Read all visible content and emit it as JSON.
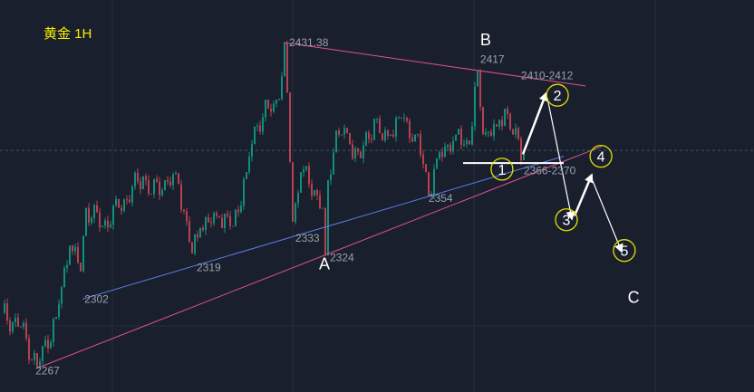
{
  "chart_data": {
    "type": "candlestick",
    "title": "黄金 1H",
    "ylim": [
      2247,
      2448
    ],
    "xlim": [
      0,
      277
    ],
    "colors": {
      "up": "#0f8f7c",
      "down": "#b8414f",
      "background": "#1a1f2e",
      "grid": "#262c3b",
      "trend_pink": "#e0508f",
      "trend_blue": "#5b7fe6",
      "annotation": "#ffffff",
      "circle": "#e4e000",
      "label": "#9aa0ab",
      "title": "#f5f000"
    },
    "current_price": 2377,
    "price_path": [
      [
        0,
        2295
      ],
      [
        7,
        2288
      ],
      [
        13,
        2268
      ],
      [
        20,
        2293
      ],
      [
        25,
        2329
      ],
      [
        29,
        2316
      ],
      [
        31,
        2348
      ],
      [
        37,
        2339
      ],
      [
        43,
        2348
      ],
      [
        52,
        2364
      ],
      [
        55,
        2355
      ],
      [
        60,
        2362
      ],
      [
        65,
        2360
      ],
      [
        70,
        2325
      ],
      [
        73,
        2338
      ],
      [
        80,
        2343
      ],
      [
        85,
        2339
      ],
      [
        90,
        2366
      ],
      [
        93,
        2389
      ],
      [
        98,
        2398
      ],
      [
        102,
        2403
      ],
      [
        104,
        2431.38
      ],
      [
        106,
        2371
      ],
      [
        107,
        2341
      ],
      [
        110,
        2366
      ],
      [
        115,
        2357
      ],
      [
        118,
        2348
      ],
      [
        119,
        2324
      ],
      [
        120,
        2362
      ],
      [
        123,
        2387
      ],
      [
        125,
        2385
      ],
      [
        128,
        2380
      ],
      [
        132,
        2373
      ],
      [
        137,
        2393
      ],
      [
        140,
        2382
      ],
      [
        143,
        2385
      ],
      [
        147,
        2393
      ],
      [
        152,
        2385
      ],
      [
        156,
        2366
      ],
      [
        157,
        2354
      ],
      [
        160,
        2373
      ],
      [
        167,
        2385
      ],
      [
        172,
        2380
      ],
      [
        175,
        2417
      ],
      [
        177,
        2385
      ],
      [
        182,
        2389
      ],
      [
        185,
        2398
      ],
      [
        188,
        2385
      ],
      [
        192,
        2375
      ]
    ],
    "trendlines": [
      {
        "color": "pink",
        "from": [
          104,
          2431.38
        ],
        "to": [
          215,
          2409.5
        ]
      },
      {
        "color": "blue",
        "from": [
          30,
          2302
        ],
        "to": [
          207,
          2374
        ]
      },
      {
        "color": "pink",
        "from": [
          13,
          2267
        ],
        "to": [
          221,
          2379
        ]
      },
      {
        "color": "white",
        "from": [
          170,
          2370.6
        ],
        "to": [
          207,
          2370.6
        ]
      }
    ],
    "wave_arrows": [
      {
        "from": [
          192,
          2375
        ],
        "to": [
          200.5,
          2405.7
        ],
        "bold": true
      },
      {
        "from": [
          201,
          2403.5
        ],
        "to": [
          210,
          2342.5
        ],
        "bold": false
      },
      {
        "from": [
          211,
          2344
        ],
        "to": [
          217.3,
          2364.6
        ],
        "bold": true
      },
      {
        "from": [
          217.7,
          2361.5
        ],
        "to": [
          228.3,
          2326
        ],
        "bold": false
      }
    ],
    "wave_points": [
      {
        "label": "1",
        "at": [
          184.3,
          2367.5
        ]
      },
      {
        "label": "2",
        "at": [
          204.7,
          2404.8
        ]
      },
      {
        "label": "3",
        "at": [
          208,
          2342
        ]
      },
      {
        "label": "4",
        "at": [
          220.7,
          2374
        ]
      },
      {
        "label": "5",
        "at": [
          229.3,
          2326.5
        ]
      }
    ],
    "wave_labels": [
      {
        "label": "A",
        "at": [
          119,
          2317
        ]
      },
      {
        "label": "B",
        "at": [
          178.3,
          2430
        ]
      },
      {
        "label": "C",
        "at": [
          232.7,
          2300
        ]
      }
    ],
    "price_labels": [
      {
        "text": "2431.38",
        "at": [
          106,
          2429.5
        ]
      },
      {
        "text": "2417",
        "at": [
          176.3,
          2421
        ]
      },
      {
        "text": "2410-2412",
        "at": [
          191.3,
          2413
        ]
      },
      {
        "text": "2366-2370",
        "at": [
          192.3,
          2365
        ]
      },
      {
        "text": "2354",
        "at": [
          157.3,
          2351
        ]
      },
      {
        "text": "2333",
        "at": [
          108.3,
          2331
        ]
      },
      {
        "text": "2324",
        "at": [
          121,
          2321
        ]
      },
      {
        "text": "2319",
        "at": [
          72,
          2316
        ]
      },
      {
        "text": "2302",
        "at": [
          30.7,
          2300
        ]
      },
      {
        "text": "2267",
        "at": [
          12.7,
          2264
        ]
      }
    ]
  }
}
